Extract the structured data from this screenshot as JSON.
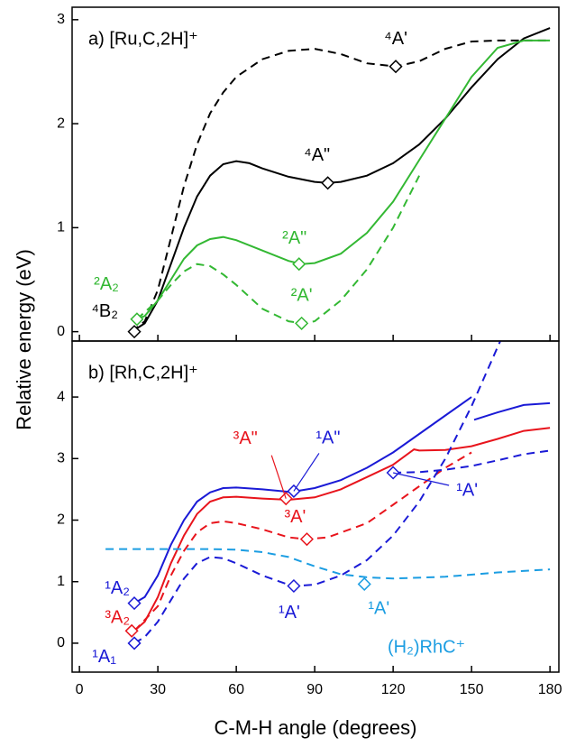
{
  "chart_data": [
    {
      "type": "line",
      "title": "a)  [Ru,C,2H]⁺",
      "ylabel": "Relative energy (eV)",
      "xlim": [
        -2.8,
        183.4
      ],
      "xticks": [
        0,
        30,
        60,
        90,
        120,
        150,
        180
      ],
      "ylim": [
        -0.09,
        3.12
      ],
      "yticks": [
        0,
        1,
        2,
        3
      ],
      "series": [
        {
          "color": "#000000",
          "dash": false,
          "x": [
            20,
            25,
            30,
            35,
            40,
            45,
            50,
            55,
            60,
            65,
            70,
            80,
            90,
            95,
            100,
            110,
            120,
            130,
            140,
            150,
            160,
            170,
            180
          ],
          "values": [
            0,
            0.08,
            0.3,
            0.65,
            1.0,
            1.3,
            1.5,
            1.61,
            1.64,
            1.62,
            1.57,
            1.49,
            1.44,
            1.43,
            1.44,
            1.5,
            1.62,
            1.8,
            2.05,
            2.35,
            2.62,
            2.82,
            2.92
          ]
        },
        {
          "color": "#000000",
          "dash": true,
          "x": [
            20,
            25,
            30,
            35,
            40,
            45,
            50,
            55,
            60,
            70,
            80,
            90,
            100,
            110,
            121,
            130,
            140,
            150,
            160,
            170,
            180
          ],
          "values": [
            0,
            0.1,
            0.4,
            0.9,
            1.4,
            1.8,
            2.1,
            2.3,
            2.45,
            2.62,
            2.7,
            2.72,
            2.67,
            2.58,
            2.55,
            2.6,
            2.72,
            2.79,
            2.8,
            2.8,
            2.8
          ]
        },
        {
          "color": "#33b833",
          "dash": false,
          "x": [
            22,
            25,
            30,
            35,
            40,
            45,
            50,
            55,
            60,
            70,
            80,
            85,
            90,
            100,
            110,
            120,
            130,
            140,
            150,
            160,
            170,
            180
          ],
          "values": [
            0.12,
            0.15,
            0.3,
            0.5,
            0.7,
            0.83,
            0.89,
            0.91,
            0.88,
            0.78,
            0.68,
            0.65,
            0.66,
            0.75,
            0.95,
            1.25,
            1.65,
            2.05,
            2.45,
            2.73,
            2.8,
            2.8
          ]
        },
        {
          "color": "#33b833",
          "dash": true,
          "x": [
            22,
            30,
            35,
            40,
            45,
            50,
            55,
            60,
            70,
            80,
            85,
            90,
            100,
            110,
            120,
            130
          ],
          "values": [
            0.12,
            0.3,
            0.45,
            0.58,
            0.65,
            0.63,
            0.55,
            0.45,
            0.22,
            0.1,
            0.08,
            0.1,
            0.3,
            0.6,
            1.0,
            1.5
          ]
        }
      ],
      "points": [
        {
          "label": "⁴B₂",
          "x": 21,
          "y": 0,
          "color": "#000000"
        },
        {
          "label": "²A₂",
          "x": 22,
          "y": 0.12,
          "color": "#33b833"
        },
        {
          "label": "²A'",
          "x": 85,
          "y": 0.08,
          "color": "#33b833"
        },
        {
          "label": "²A\"",
          "x": 84,
          "y": 0.65,
          "color": "#33b833"
        },
        {
          "label": "⁴A\"",
          "x": 95,
          "y": 1.43,
          "color": "#000000"
        },
        {
          "label": "⁴A'",
          "x": 121,
          "y": 2.55,
          "color": "#000000"
        }
      ]
    },
    {
      "type": "line",
      "title": "b)  [Rh,C,2H]⁺",
      "xlabel": "C-M-H angle (degrees)",
      "xlim": [
        -2.8,
        183.4
      ],
      "xticks": [
        0,
        30,
        60,
        90,
        120,
        150,
        180
      ],
      "ylim": [
        -0.47,
        4.91
      ],
      "yticks": [
        0,
        1,
        2,
        3,
        4
      ],
      "series": [
        {
          "color": "#1a1ad6",
          "dash": false,
          "x": [
            21,
            25,
            30,
            35,
            40,
            45,
            50,
            55,
            60,
            70,
            80,
            83,
            90,
            100,
            110,
            120,
            130,
            140,
            150,
            151,
            151,
            160,
            170,
            180
          ],
          "values": [
            0.65,
            0.75,
            1.1,
            1.6,
            2.0,
            2.3,
            2.45,
            2.52,
            2.53,
            2.5,
            2.46,
            2.47,
            2.52,
            2.65,
            2.85,
            3.1,
            3.4,
            3.7,
            4.0,
            null,
            3.63,
            3.75,
            3.87,
            3.9
          ]
        },
        {
          "color": "#e8141c",
          "dash": false,
          "x": [
            21,
            25,
            30,
            35,
            40,
            45,
            50,
            55,
            60,
            70,
            80,
            90,
            100,
            110,
            120,
            128,
            130,
            140,
            150,
            160,
            170,
            180
          ],
          "values": [
            0.2,
            0.35,
            0.75,
            1.3,
            1.75,
            2.1,
            2.3,
            2.37,
            2.38,
            2.35,
            2.33,
            2.37,
            2.5,
            2.7,
            2.9,
            3.15,
            3.13,
            3.14,
            3.2,
            3.32,
            3.45,
            3.5
          ]
        },
        {
          "color": "#e8141c",
          "dash": true,
          "x": [
            21,
            30,
            35,
            40,
            45,
            50,
            55,
            60,
            70,
            80,
            87,
            95,
            110,
            120,
            130,
            140,
            150
          ],
          "values": [
            0.2,
            0.6,
            1.1,
            1.5,
            1.8,
            1.95,
            1.98,
            1.95,
            1.85,
            1.72,
            1.69,
            1.72,
            1.95,
            2.25,
            2.55,
            2.85,
            3.1
          ]
        },
        {
          "color": "#1a1ad6",
          "dash": true,
          "x": [
            21,
            25,
            30,
            35,
            40,
            45,
            50,
            55,
            60,
            70,
            80,
            82,
            90,
            100,
            110,
            120,
            130,
            140,
            150,
            161
          ],
          "values": [
            0,
            0.1,
            0.35,
            0.7,
            1.05,
            1.3,
            1.4,
            1.38,
            1.3,
            1.1,
            0.95,
            0.93,
            0.95,
            1.1,
            1.35,
            1.75,
            2.3,
            3.0,
            3.85,
            4.91
          ]
        },
        {
          "color": "#1a1ad6",
          "dash": true,
          "x": [
            120,
            130,
            140,
            150,
            160,
            170,
            180
          ],
          "values": [
            2.77,
            2.78,
            2.82,
            2.88,
            2.97,
            3.07,
            3.13
          ]
        },
        {
          "color": "#1b9de2",
          "dash": true,
          "label": "(H₂)RhC⁺",
          "x": [
            10,
            30,
            50,
            60,
            70,
            80,
            90,
            100,
            110,
            120,
            140,
            160,
            180
          ],
          "values": [
            1.53,
            1.53,
            1.53,
            1.52,
            1.48,
            1.4,
            1.25,
            1.12,
            1.07,
            1.05,
            1.08,
            1.15,
            1.2
          ]
        }
      ],
      "points": [
        {
          "label": "¹A₁",
          "x": 21,
          "y": 0,
          "color": "#1a1ad6"
        },
        {
          "label": "³A₂",
          "x": 20,
          "y": 0.2,
          "color": "#e8141c"
        },
        {
          "label": "¹A₂",
          "x": 21,
          "y": 0.65,
          "color": "#1a1ad6"
        },
        {
          "label": "³A\"",
          "x": 79,
          "y": 2.35,
          "color": "#e8141c"
        },
        {
          "label": "¹A\"",
          "x": 82,
          "y": 2.47,
          "color": "#1a1ad6"
        },
        {
          "label": "³A'",
          "x": 87,
          "y": 1.69,
          "color": "#e8141c"
        },
        {
          "label": "¹A'",
          "x": 82,
          "y": 0.93,
          "color": "#1a1ad6"
        },
        {
          "label": "¹A'",
          "x": 109,
          "y": 0.96,
          "color": "#1b9de2"
        },
        {
          "label": "¹A'",
          "x": 120,
          "y": 2.77,
          "color": "#1a1ad6"
        }
      ]
    }
  ]
}
